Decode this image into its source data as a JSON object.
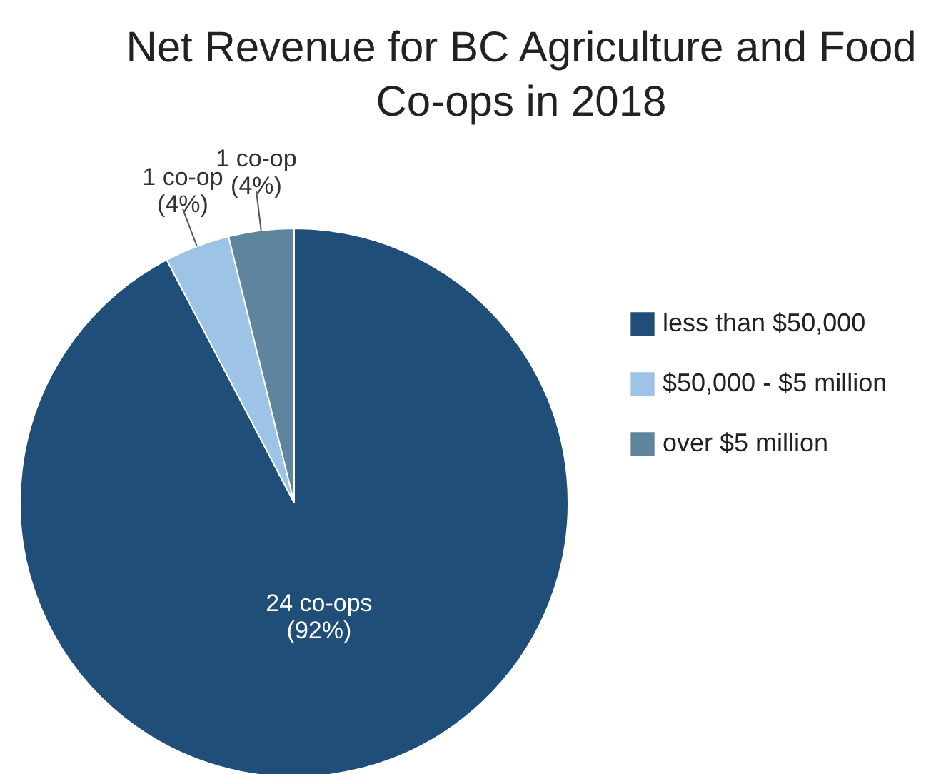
{
  "chart_data": {
    "type": "pie",
    "title": "Net Revenue for BC Agriculture and Food\nCo-ops in 2018",
    "categories": [
      "less than $50,000",
      "$50,000 - $5 million",
      "over $5 million"
    ],
    "values": [
      24,
      1,
      1
    ],
    "colors": [
      "#1f4e79",
      "#9dc3e6",
      "#5f849e"
    ],
    "value_labels": [
      "24 co-ops\n(92%)",
      "1 co-op\n(4%)",
      "1 co-op\n(4%)"
    ],
    "legend": "right"
  }
}
